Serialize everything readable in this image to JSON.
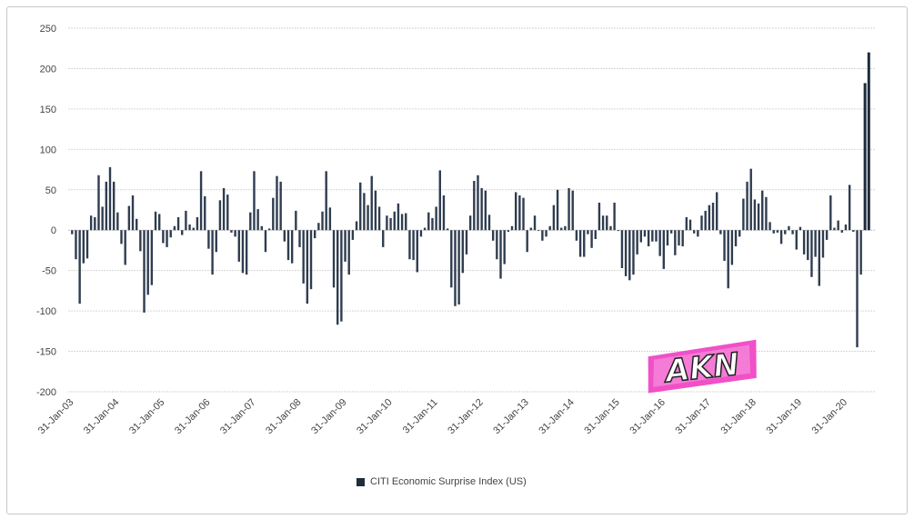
{
  "chart_data": {
    "type": "bar",
    "title": "",
    "xlabel": "",
    "ylabel": "",
    "ylim": [
      -200,
      250
    ],
    "yticks": [
      250,
      200,
      150,
      100,
      50,
      0,
      -50,
      -100,
      -150,
      -200
    ],
    "grid": true,
    "legend_position": "bottom-center",
    "x_start": "2003-01",
    "x_frequency": "monthly",
    "xticks": [
      "31-Jan-03",
      "31-Jan-04",
      "31-Jan-05",
      "31-Jan-06",
      "31-Jan-07",
      "31-Jan-08",
      "31-Jan-09",
      "31-Jan-10",
      "31-Jan-11",
      "31-Jan-12",
      "31-Jan-13",
      "31-Jan-14",
      "31-Jan-15",
      "31-Jan-16",
      "31-Jan-17",
      "31-Jan-18",
      "31-Jan-19",
      "31-Jan-20"
    ],
    "series": [
      {
        "name": "CITI Economic Surprise Index (US)",
        "color": "#2f3d4f",
        "values": [
          -5,
          -36,
          -91,
          -41,
          -35,
          18,
          16,
          68,
          29,
          60,
          78,
          60,
          22,
          -17,
          -43,
          30,
          43,
          14,
          -26,
          -102,
          -80,
          -68,
          23,
          20,
          -16,
          -21,
          -9,
          5,
          16,
          -6,
          24,
          7,
          3,
          16,
          73,
          42,
          -23,
          -55,
          -27,
          37,
          52,
          44,
          -3,
          -8,
          -39,
          -53,
          -55,
          22,
          73,
          26,
          5,
          -27,
          2,
          40,
          67,
          60,
          -14,
          -37,
          -41,
          24,
          -21,
          -66,
          -91,
          -73,
          -10,
          9,
          23,
          73,
          28,
          -71,
          -117,
          -113,
          -39,
          -55,
          -12,
          11,
          59,
          46,
          31,
          67,
          49,
          29,
          -21,
          18,
          15,
          23,
          33,
          20,
          21,
          -36,
          -37,
          -52,
          -8,
          3,
          22,
          15,
          29,
          74,
          43,
          2,
          -71,
          -94,
          -92,
          -53,
          -30,
          18,
          61,
          68,
          52,
          49,
          19,
          -13,
          -36,
          -60,
          -42,
          -2,
          5,
          47,
          43,
          40,
          -27,
          3,
          18,
          0,
          -13,
          -8,
          5,
          31,
          50,
          3,
          5,
          52,
          49,
          -13,
          -33,
          -33,
          -5,
          -22,
          -11,
          34,
          18,
          18,
          5,
          34,
          -1,
          -47,
          -57,
          -62,
          -55,
          -30,
          -15,
          -8,
          -20,
          -14,
          -14,
          -32,
          -48,
          -19,
          -4,
          -31,
          -19,
          -20,
          16,
          13,
          -4,
          -8,
          18,
          24,
          31,
          34,
          47,
          -5,
          -38,
          -72,
          -43,
          -20,
          -8,
          39,
          60,
          76,
          38,
          33,
          49,
          41,
          10,
          -4,
          -3,
          -17,
          -5,
          5,
          -5,
          -24,
          4,
          -30,
          -37,
          -58,
          -33,
          -69,
          -34,
          -12,
          43,
          3,
          12,
          -3,
          7,
          56,
          -2,
          -145,
          -55,
          182,
          220
        ]
      }
    ]
  },
  "legend": {
    "label": "CITI Economic Surprise Index (US)"
  },
  "watermark": {
    "text": "AKN",
    "color": "#f050c8"
  }
}
